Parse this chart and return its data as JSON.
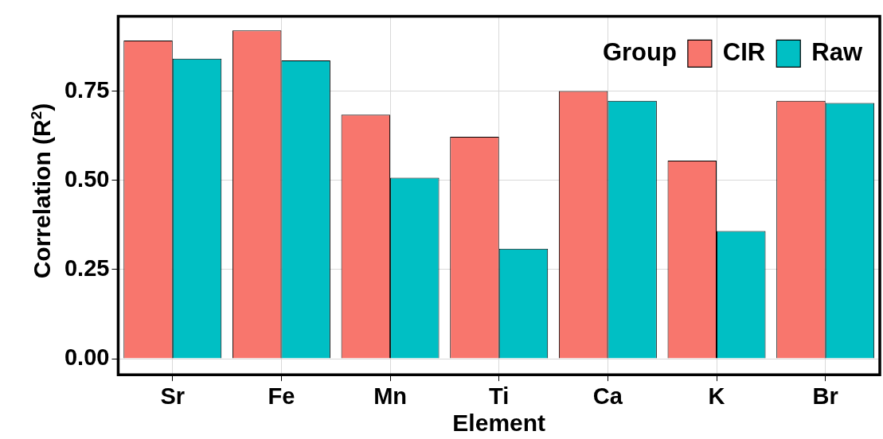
{
  "chart_data": {
    "type": "bar",
    "xlabel": "Element",
    "ylabel": "Correlation (R$^{2}$)",
    "legend_title": "Group",
    "categories": [
      "Sr",
      "Fe",
      "Mn",
      "Ti",
      "Ca",
      "K",
      "Br"
    ],
    "series": [
      {
        "name": "CIR",
        "color": "#f8766d",
        "values": [
          0.892,
          0.92,
          0.684,
          0.622,
          0.75,
          0.555,
          0.723
        ]
      },
      {
        "name": "Raw",
        "color": "#00bfc4",
        "values": [
          0.841,
          0.836,
          0.507,
          0.308,
          0.723,
          0.358,
          0.717
        ]
      }
    ],
    "ylim": [
      -0.045,
      0.96
    ],
    "yticks": [
      {
        "value": 0,
        "label": "0.00"
      },
      {
        "value": 0.25,
        "label": "0.25"
      },
      {
        "value": 0.5,
        "label": "0.50"
      },
      {
        "value": 0.75,
        "label": "0.75"
      }
    ],
    "grid": true,
    "legend": "top right"
  }
}
